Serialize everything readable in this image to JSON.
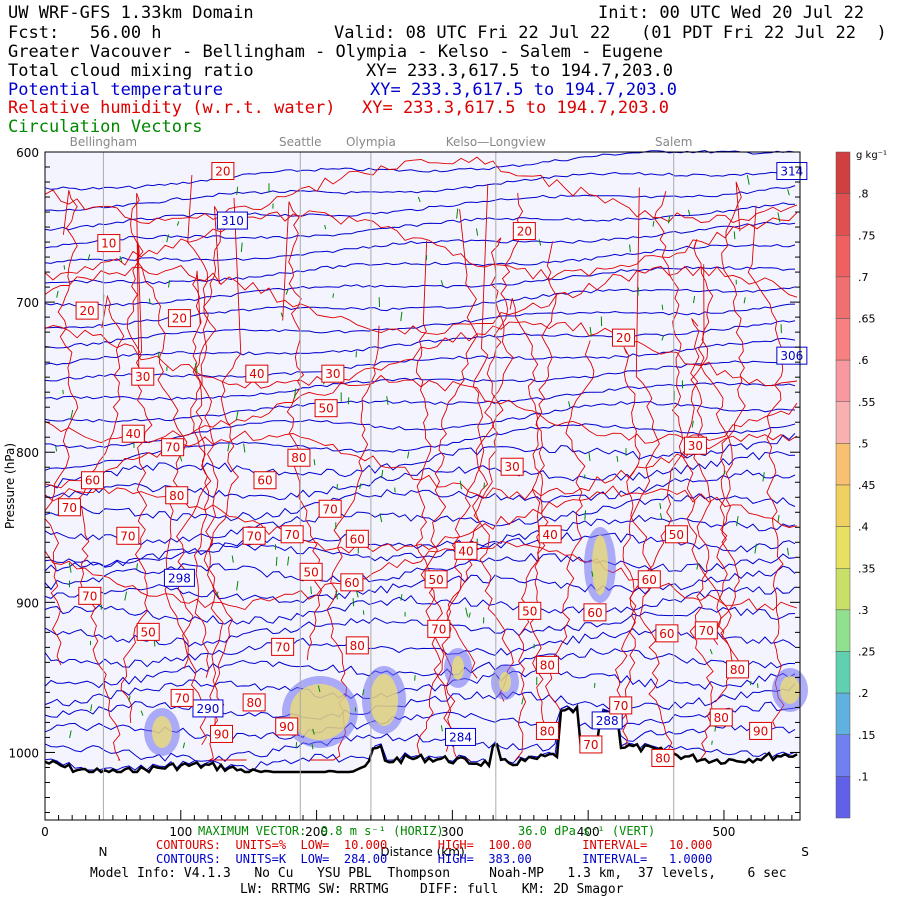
{
  "header": {
    "model": "UW WRF-GFS 1.33km Domain",
    "init": "Init: 00 UTC Wed 20 Jul 22",
    "fcst": "Fcst:   56.00 h",
    "valid": "Valid: 08 UTC Fri 22 Jul 22   (01 PDT Fri 22 Jul 22  )",
    "region": "Greater Vacouver - Bellingham - Olympia - Kelso - Salem - Eugene",
    "field1": "Total cloud mixing ratio",
    "field1_xy": "XY= 233.3,617.5 to 194.7,203.0",
    "field2": "Potential temperature",
    "field2_xy": "XY= 233.3,617.5 to 194.7,203.0",
    "field3": "Relative humidity (w.r.t. water)",
    "field3_xy": "XY= 233.3,617.5 to 194.7,203.0",
    "field4": "Circulation Vectors"
  },
  "colors": {
    "text": "#000000",
    "theta": "#0000cc",
    "rh": "#dd0000",
    "vectors": "#008800",
    "city_lines": "#aaaaaa",
    "plot_bg": "#f4f4ff",
    "terrain": "#000000"
  },
  "cities": [
    {
      "name": "Bellingham",
      "x_km": 43
    },
    {
      "name": "Seattle",
      "x_km": 188
    },
    {
      "name": "Olympia",
      "x_km": 240
    },
    {
      "name": "Kelso—Longview",
      "x_km": 332
    },
    {
      "name": "Salem",
      "x_km": 463
    }
  ],
  "chart_data": {
    "type": "contour cross-section",
    "x_ticks": [
      0,
      100,
      200,
      300,
      400,
      500
    ],
    "x_tick_labels": [
      "0",
      "100",
      "200",
      "300",
      "400",
      "500"
    ],
    "xlim": [
      0,
      556
    ],
    "x_axis_label": "Distance (km)",
    "left_end_label": "N",
    "right_end_label": "S",
    "y_ticks": [
      600,
      700,
      800,
      900,
      1000
    ],
    "y_tick_labels": [
      "600",
      "700",
      "800",
      "900",
      "1000"
    ],
    "ylim": [
      600,
      1045
    ],
    "y_axis_label": "Pressure (hPa)",
    "colorbar": {
      "units": "g kg⁻¹",
      "levels": [
        0.05,
        0.1,
        0.15,
        0.2,
        0.25,
        0.3,
        0.35,
        0.4,
        0.45,
        0.5,
        0.55,
        0.6,
        0.65,
        0.7,
        0.75,
        0.8
      ],
      "labels": [
        ".8",
        ".75",
        ".7",
        ".65",
        ".6",
        ".55",
        ".5",
        ".45",
        ".4",
        ".35",
        ".3",
        ".25",
        ".2",
        ".15",
        ".1"
      ]
    },
    "theta_labels": [
      {
        "x": 550,
        "p": 613,
        "text": "314"
      },
      {
        "x": 138,
        "p": 646,
        "text": "310"
      },
      {
        "x": 550,
        "p": 736,
        "text": "306"
      },
      {
        "x": 99,
        "p": 884,
        "text": "298"
      },
      {
        "x": 120,
        "p": 971,
        "text": "290"
      },
      {
        "x": 414,
        "p": 979,
        "text": "288"
      },
      {
        "x": 306,
        "p": 990,
        "text": "284"
      }
    ],
    "rh_labels": [
      {
        "x": 131,
        "p": 613,
        "text": "20"
      },
      {
        "x": 47,
        "p": 661,
        "text": "10"
      },
      {
        "x": 353,
        "p": 653,
        "text": "20"
      },
      {
        "x": 31,
        "p": 706,
        "text": "20"
      },
      {
        "x": 99,
        "p": 711,
        "text": "20"
      },
      {
        "x": 426,
        "p": 724,
        "text": "20"
      },
      {
        "x": 72,
        "p": 750,
        "text": "30"
      },
      {
        "x": 156,
        "p": 748,
        "text": "40"
      },
      {
        "x": 212,
        "p": 748,
        "text": "30"
      },
      {
        "x": 207,
        "p": 771,
        "text": "50"
      },
      {
        "x": 65,
        "p": 788,
        "text": "40"
      },
      {
        "x": 94,
        "p": 797,
        "text": "70"
      },
      {
        "x": 479,
        "p": 796,
        "text": "30"
      },
      {
        "x": 187,
        "p": 804,
        "text": "80"
      },
      {
        "x": 344,
        "p": 810,
        "text": "30"
      },
      {
        "x": 35,
        "p": 819,
        "text": "60"
      },
      {
        "x": 162,
        "p": 819,
        "text": "60"
      },
      {
        "x": 97,
        "p": 829,
        "text": "80"
      },
      {
        "x": 18,
        "p": 837,
        "text": "70"
      },
      {
        "x": 210,
        "p": 838,
        "text": "70"
      },
      {
        "x": 61,
        "p": 856,
        "text": "70"
      },
      {
        "x": 154,
        "p": 856,
        "text": "70"
      },
      {
        "x": 182,
        "p": 855,
        "text": "70"
      },
      {
        "x": 230,
        "p": 858,
        "text": "60"
      },
      {
        "x": 372,
        "p": 855,
        "text": "40"
      },
      {
        "x": 310,
        "p": 866,
        "text": "40"
      },
      {
        "x": 465,
        "p": 855,
        "text": "50"
      },
      {
        "x": 196,
        "p": 880,
        "text": "50"
      },
      {
        "x": 226,
        "p": 887,
        "text": "60"
      },
      {
        "x": 288,
        "p": 885,
        "text": "50"
      },
      {
        "x": 445,
        "p": 885,
        "text": "60"
      },
      {
        "x": 33,
        "p": 896,
        "text": "70"
      },
      {
        "x": 357,
        "p": 906,
        "text": "50"
      },
      {
        "x": 405,
        "p": 907,
        "text": "60"
      },
      {
        "x": 76,
        "p": 920,
        "text": "50"
      },
      {
        "x": 290,
        "p": 918,
        "text": "70"
      },
      {
        "x": 458,
        "p": 921,
        "text": "60"
      },
      {
        "x": 487,
        "p": 919,
        "text": "70"
      },
      {
        "x": 175,
        "p": 930,
        "text": "70"
      },
      {
        "x": 230,
        "p": 929,
        "text": "80"
      },
      {
        "x": 370,
        "p": 942,
        "text": "80"
      },
      {
        "x": 510,
        "p": 945,
        "text": "80"
      },
      {
        "x": 101,
        "p": 964,
        "text": "70"
      },
      {
        "x": 154,
        "p": 967,
        "text": "80"
      },
      {
        "x": 178,
        "p": 983,
        "text": "90"
      },
      {
        "x": 130,
        "p": 988,
        "text": "90"
      },
      {
        "x": 424,
        "p": 969,
        "text": "70"
      },
      {
        "x": 498,
        "p": 977,
        "text": "80"
      },
      {
        "x": 370,
        "p": 986,
        "text": "80"
      },
      {
        "x": 527,
        "p": 986,
        "text": "90"
      },
      {
        "x": 402,
        "p": 995,
        "text": "70"
      },
      {
        "x": 455,
        "p": 1004,
        "text": "80"
      }
    ]
  },
  "footer": {
    "vectors_max": "MAXIMUM VECTOR:  9.8 m s⁻¹ (HORIZ)",
    "vectors_vert": "36.0 dPa s⁻¹ (VERT)",
    "rh_contours": "CONTOURS:  UNITS=%  LOW=  10.000       HIGH=  100.00       INTERVAL=   10.000",
    "theta_contours": "CONTOURS:  UNITS=K  LOW=  284.00       HIGH=  383.00       INTERVAL=   1.0000",
    "model_info": "Model Info: V4.1.3   No Cu   YSU PBL  Thompson     Noah-MP   1.3 km,  37 levels,    6 sec",
    "radiation": "LW: RRTMG SW: RRTMG    DIFF: full   KM: 2D Smagor"
  }
}
